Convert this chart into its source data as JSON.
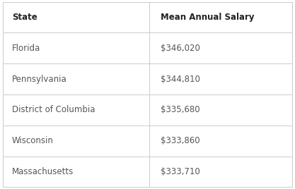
{
  "col_headers": [
    "State",
    "Mean Annual Salary"
  ],
  "rows": [
    [
      "Florida",
      "$346,020"
    ],
    [
      "Pennsylvania",
      "$344,810"
    ],
    [
      "District of Columbia",
      "$335,680"
    ],
    [
      "Wisconsin",
      "$333,860"
    ],
    [
      "Massachusetts",
      "$333,710"
    ]
  ],
  "border_color": "#cccccc",
  "header_text_color": "#222222",
  "cell_text_color": "#555555",
  "header_fontsize": 8.5,
  "cell_fontsize": 8.5,
  "col_split": 0.505,
  "fig_bg": "#ffffff",
  "outer_border_color": "#bbbbbb"
}
